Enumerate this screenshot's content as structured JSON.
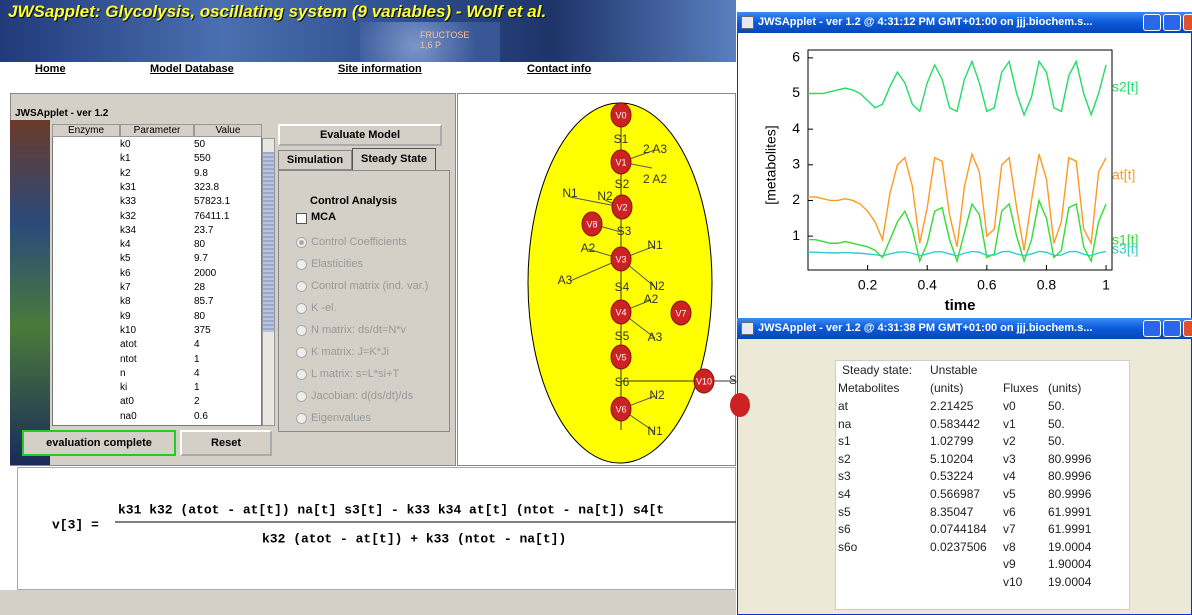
{
  "header": {
    "title": "JWSapplet: Glycolysis, oscillating system (9 variables) - Wolf et al.",
    "banner_caption": [
      "FRUCTOSE",
      "1,6 P"
    ],
    "nav": [
      "Home",
      "Model Database",
      "Site information",
      "Contact info"
    ]
  },
  "applet": {
    "title": "JWSApplet - ver 1.2",
    "columns": [
      "Enzyme",
      "Parameter",
      "Value"
    ],
    "parameters": [
      [
        "k0",
        "50"
      ],
      [
        "k1",
        "550"
      ],
      [
        "k2",
        "9.8"
      ],
      [
        "k31",
        "323.8"
      ],
      [
        "k33",
        "57823.1"
      ],
      [
        "k32",
        "76411.1"
      ],
      [
        "k34",
        "23.7"
      ],
      [
        "k4",
        "80"
      ],
      [
        "k5",
        "9.7"
      ],
      [
        "k6",
        "2000"
      ],
      [
        "k7",
        "28"
      ],
      [
        "k8",
        "85.7"
      ],
      [
        "k9",
        "80"
      ],
      [
        "k10",
        "375"
      ],
      [
        "atot",
        "4"
      ],
      [
        "ntot",
        "1"
      ],
      [
        "n",
        "4"
      ],
      [
        "ki",
        "1"
      ],
      [
        "at0",
        "2"
      ],
      [
        "na0",
        "0.6"
      ]
    ],
    "evaluate_button": "Evaluate Model",
    "tabs": [
      "Simulation",
      "Steady State"
    ],
    "section": "Control Analysis",
    "checkbox": "MCA",
    "options": [
      "Control Coefficients",
      "Elasticities",
      "Control matrix (ind. var.)",
      "K -el.",
      "N matrix: ds/dt=N*v",
      "K matrix: J=K*Ji",
      "L matrix: s=L*si+T",
      "Jacobian: d(ds/dt)/ds",
      "Eigenvalues"
    ],
    "status_button": "evaluation complete",
    "reset_button": "Reset"
  },
  "diagram": {
    "nodes": [
      "V0",
      "V1",
      "V2",
      "V8",
      "V3",
      "V4",
      "V7",
      "V5",
      "V10",
      "V6"
    ],
    "labels": [
      "S1",
      "2 A3",
      "2 A2",
      "S2",
      "N1",
      "N2",
      "S3",
      "N1",
      "A2",
      "A3",
      "N2",
      "S4",
      "A2",
      "A3",
      "S5",
      "S6",
      "N2",
      "S",
      "N1"
    ]
  },
  "equation": {
    "lhs": "v[3] =",
    "numerator": "k31 k32 (atot - at[t]) na[t] s3[t] - k33 k34 at[t] (ntot - na[t]) s4[t",
    "denominator": "k32 (atot - at[t]) + k33 (ntot - na[t])"
  },
  "plot_window": {
    "title": "JWSApplet - ver 1.2 @ 4:31:12 PM GMT+01:00 on jjj.biochem.s..."
  },
  "chart_data": {
    "type": "line",
    "x_label": "time",
    "y_label": "[metabolites]",
    "x": [
      0,
      0.025,
      0.05,
      0.075,
      0.1,
      0.125,
      0.15,
      0.175,
      0.2,
      0.225,
      0.25,
      0.275,
      0.3,
      0.325,
      0.35,
      0.375,
      0.4,
      0.425,
      0.45,
      0.475,
      0.5,
      0.525,
      0.55,
      0.575,
      0.6,
      0.625,
      0.65,
      0.675,
      0.7,
      0.725,
      0.75,
      0.775,
      0.8,
      0.825,
      0.85,
      0.875,
      0.9,
      0.925,
      0.95,
      0.975,
      1
    ],
    "xlim": [
      0,
      1.02
    ],
    "ylim": [
      0.05,
      6.22
    ],
    "xticks": [
      0.2,
      0.4,
      0.6,
      0.8,
      1
    ],
    "yticks": [
      1,
      2,
      3,
      4,
      5,
      6
    ],
    "series": [
      {
        "name": "s2[t]",
        "color": "#22dd66",
        "values": [
          5.0,
          5.0,
          5.0,
          5.05,
          5.1,
          5.15,
          5.1,
          5.0,
          4.8,
          4.6,
          4.7,
          5.2,
          5.6,
          5.3,
          4.7,
          4.5,
          5.3,
          5.8,
          5.4,
          4.6,
          4.5,
          5.4,
          5.9,
          5.3,
          4.5,
          4.6,
          5.6,
          5.9,
          5.0,
          4.4,
          4.9,
          5.9,
          5.6,
          4.6,
          4.5,
          5.5,
          5.9,
          5.0,
          4.4,
          5.0,
          5.8
        ]
      },
      {
        "name": "at[t]",
        "color": "#ff9922",
        "values": [
          2.1,
          2.1,
          2.05,
          2.0,
          2.0,
          2.05,
          2.0,
          1.9,
          1.7,
          1.4,
          0.9,
          2.2,
          3.0,
          3.2,
          2.4,
          0.8,
          1.8,
          3.2,
          3.1,
          1.6,
          0.7,
          2.4,
          3.3,
          2.8,
          1.0,
          1.2,
          3.0,
          3.2,
          1.8,
          0.6,
          2.0,
          3.3,
          2.6,
          0.8,
          1.4,
          3.2,
          3.1,
          1.2,
          0.8,
          2.8,
          3.2
        ]
      },
      {
        "name": "s1[t]",
        "color": "#33dd33",
        "values": [
          0.9,
          0.9,
          0.85,
          0.8,
          0.8,
          0.85,
          0.8,
          0.75,
          0.7,
          0.6,
          0.4,
          0.9,
          1.4,
          1.7,
          1.2,
          0.3,
          0.8,
          1.7,
          1.8,
          0.9,
          0.3,
          1.1,
          1.9,
          1.6,
          0.4,
          0.5,
          1.7,
          1.9,
          1.0,
          0.3,
          0.9,
          2.0,
          1.5,
          0.4,
          0.6,
          1.8,
          1.9,
          0.7,
          0.3,
          1.4,
          1.9
        ]
      },
      {
        "name": "s3[t]",
        "color": "#33cccc",
        "values": [
          0.55,
          0.55,
          0.54,
          0.53,
          0.53,
          0.54,
          0.53,
          0.52,
          0.5,
          0.48,
          0.45,
          0.5,
          0.55,
          0.56,
          0.52,
          0.45,
          0.5,
          0.56,
          0.56,
          0.5,
          0.45,
          0.52,
          0.57,
          0.55,
          0.46,
          0.47,
          0.56,
          0.57,
          0.5,
          0.45,
          0.5,
          0.57,
          0.55,
          0.46,
          0.47,
          0.56,
          0.57,
          0.49,
          0.45,
          0.53,
          0.57
        ]
      }
    ]
  },
  "steady_window": {
    "title": "JWSApplet - ver 1.2 @ 4:31:38 PM GMT+01:00 on jjj.biochem.s...",
    "state_label": "Steady state:",
    "state": "Unstable",
    "metabolites_header": [
      "Metabolites",
      "(units)"
    ],
    "fluxes_header": [
      "Fluxes",
      "(units)"
    ],
    "metabolites": [
      [
        "at",
        "2.21425"
      ],
      [
        "na",
        "0.583442"
      ],
      [
        "s1",
        "1.02799"
      ],
      [
        "s2",
        "5.10204"
      ],
      [
        "s3",
        "0.53224"
      ],
      [
        "s4",
        "0.566987"
      ],
      [
        "s5",
        "8.35047"
      ],
      [
        "s6",
        "0.0744184"
      ],
      [
        "s6o",
        "0.0237506"
      ]
    ],
    "fluxes": [
      [
        "v0",
        "50."
      ],
      [
        "v1",
        "50."
      ],
      [
        "v2",
        "50."
      ],
      [
        "v3",
        "80.9996"
      ],
      [
        "v4",
        "80.9996"
      ],
      [
        "v5",
        "80.9996"
      ],
      [
        "v6",
        "61.9991"
      ],
      [
        "v7",
        "61.9991"
      ],
      [
        "v8",
        "19.0004"
      ],
      [
        "v9",
        "1.90004"
      ],
      [
        "v10",
        "19.0004"
      ]
    ]
  }
}
